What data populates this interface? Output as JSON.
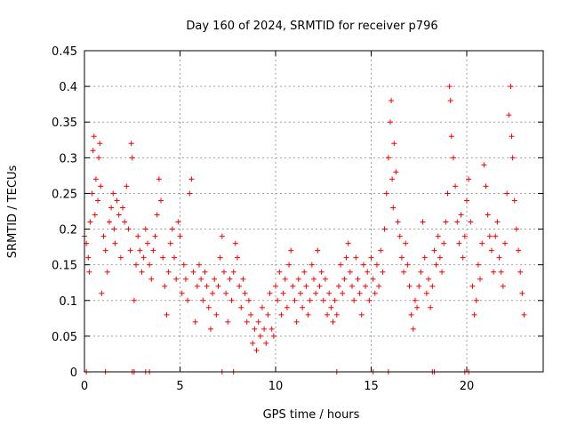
{
  "chart_data": {
    "type": "scatter",
    "title": "Day 160 of 2024, SRMTID for receiver p796",
    "xlabel": "GPS time / hours",
    "ylabel": "SRMTID / TECUs",
    "xlim": [
      0,
      24
    ],
    "ylim": [
      0,
      0.45
    ],
    "xticks": [
      0,
      5,
      10,
      15,
      20
    ],
    "xtick_labels": [
      "0",
      "5",
      "10",
      "15",
      "20"
    ],
    "yticks": [
      0,
      0.05,
      0.1,
      0.15,
      0.2,
      0.25,
      0.3,
      0.35,
      0.4,
      0.45
    ],
    "ytick_labels": [
      "0",
      "0.05",
      "0.1",
      "0.15",
      "0.2",
      "0.25",
      "0.3",
      "0.35",
      "0.4",
      "0.45"
    ],
    "grid": true,
    "marker": "+",
    "color": "#ff0000",
    "series": [
      {
        "name": "SRMTID",
        "points": [
          [
            0.0,
            0.19
          ],
          [
            0.1,
            0.18
          ],
          [
            0.2,
            0.16
          ],
          [
            0.25,
            0.14
          ],
          [
            0.3,
            0.21
          ],
          [
            0.4,
            0.25
          ],
          [
            0.45,
            0.31
          ],
          [
            0.5,
            0.33
          ],
          [
            0.55,
            0.22
          ],
          [
            0.6,
            0.27
          ],
          [
            0.7,
            0.24
          ],
          [
            0.75,
            0.3
          ],
          [
            0.8,
            0.32
          ],
          [
            0.85,
            0.26
          ],
          [
            0.9,
            0.11
          ],
          [
            1.0,
            0.19
          ],
          [
            1.1,
            0.17
          ],
          [
            1.2,
            0.14
          ],
          [
            1.3,
            0.21
          ],
          [
            1.4,
            0.23
          ],
          [
            1.5,
            0.25
          ],
          [
            1.55,
            0.2
          ],
          [
            1.6,
            0.18
          ],
          [
            1.7,
            0.24
          ],
          [
            1.8,
            0.22
          ],
          [
            1.9,
            0.16
          ],
          [
            2.0,
            0.23
          ],
          [
            2.1,
            0.21
          ],
          [
            2.2,
            0.26
          ],
          [
            2.3,
            0.2
          ],
          [
            2.4,
            0.17
          ],
          [
            2.45,
            0.32
          ],
          [
            2.5,
            0.3
          ],
          [
            2.6,
            0.1
          ],
          [
            2.7,
            0.15
          ],
          [
            2.8,
            0.19
          ],
          [
            2.9,
            0.17
          ],
          [
            3.0,
            0.14
          ],
          [
            3.1,
            0.16
          ],
          [
            3.2,
            0.2
          ],
          [
            3.3,
            0.18
          ],
          [
            3.4,
            0.15
          ],
          [
            3.5,
            0.13
          ],
          [
            3.6,
            0.17
          ],
          [
            3.7,
            0.19
          ],
          [
            3.8,
            0.22
          ],
          [
            3.9,
            0.27
          ],
          [
            4.0,
            0.24
          ],
          [
            4.1,
            0.16
          ],
          [
            4.2,
            0.12
          ],
          [
            4.3,
            0.08
          ],
          [
            4.4,
            0.14
          ],
          [
            4.5,
            0.18
          ],
          [
            4.6,
            0.2
          ],
          [
            4.7,
            0.16
          ],
          [
            4.8,
            0.13
          ],
          [
            4.9,
            0.21
          ],
          [
            5.0,
            0.19
          ],
          [
            5.1,
            0.11
          ],
          [
            5.2,
            0.15
          ],
          [
            5.3,
            0.13
          ],
          [
            5.4,
            0.1
          ],
          [
            5.5,
            0.25
          ],
          [
            5.6,
            0.27
          ],
          [
            5.7,
            0.14
          ],
          [
            5.8,
            0.07
          ],
          [
            5.9,
            0.12
          ],
          [
            6.0,
            0.15
          ],
          [
            6.1,
            0.13
          ],
          [
            6.2,
            0.1
          ],
          [
            6.3,
            0.14
          ],
          [
            6.4,
            0.12
          ],
          [
            6.5,
            0.09
          ],
          [
            6.6,
            0.06
          ],
          [
            6.7,
            0.11
          ],
          [
            6.8,
            0.13
          ],
          [
            6.9,
            0.08
          ],
          [
            7.0,
            0.12
          ],
          [
            7.1,
            0.16
          ],
          [
            7.2,
            0.19
          ],
          [
            7.3,
            0.14
          ],
          [
            7.4,
            0.11
          ],
          [
            7.5,
            0.07
          ],
          [
            7.6,
            0.13
          ],
          [
            7.7,
            0.1
          ],
          [
            7.8,
            0.14
          ],
          [
            7.9,
            0.18
          ],
          [
            8.0,
            0.16
          ],
          [
            8.1,
            0.12
          ],
          [
            8.2,
            0.09
          ],
          [
            8.3,
            0.13
          ],
          [
            8.4,
            0.11
          ],
          [
            8.5,
            0.07
          ],
          [
            8.6,
            0.1
          ],
          [
            8.7,
            0.08
          ],
          [
            8.8,
            0.04
          ],
          [
            8.9,
            0.06
          ],
          [
            9.0,
            0.03
          ],
          [
            9.1,
            0.07
          ],
          [
            9.2,
            0.05
          ],
          [
            9.3,
            0.09
          ],
          [
            9.4,
            0.06
          ],
          [
            9.5,
            0.04
          ],
          [
            9.6,
            0.08
          ],
          [
            9.7,
            0.11
          ],
          [
            9.8,
            0.06
          ],
          [
            9.9,
            0.05
          ],
          [
            10.0,
            0.12
          ],
          [
            10.1,
            0.1
          ],
          [
            10.2,
            0.14
          ],
          [
            10.3,
            0.08
          ],
          [
            10.4,
            0.11
          ],
          [
            10.5,
            0.13
          ],
          [
            10.6,
            0.09
          ],
          [
            10.7,
            0.15
          ],
          [
            10.8,
            0.17
          ],
          [
            10.9,
            0.12
          ],
          [
            11.0,
            0.1
          ],
          [
            11.1,
            0.07
          ],
          [
            11.2,
            0.13
          ],
          [
            11.3,
            0.11
          ],
          [
            11.4,
            0.09
          ],
          [
            11.5,
            0.14
          ],
          [
            11.6,
            0.12
          ],
          [
            11.7,
            0.08
          ],
          [
            11.8,
            0.1
          ],
          [
            11.9,
            0.15
          ],
          [
            12.0,
            0.13
          ],
          [
            12.1,
            0.11
          ],
          [
            12.2,
            0.17
          ],
          [
            12.3,
            0.12
          ],
          [
            12.4,
            0.14
          ],
          [
            12.5,
            0.1
          ],
          [
            12.6,
            0.13
          ],
          [
            12.7,
            0.08
          ],
          [
            12.8,
            0.11
          ],
          [
            12.9,
            0.09
          ],
          [
            13.0,
            0.07
          ],
          [
            13.1,
            0.1
          ],
          [
            13.2,
            0.08
          ],
          [
            13.3,
            0.12
          ],
          [
            13.4,
            0.15
          ],
          [
            13.5,
            0.11
          ],
          [
            13.6,
            0.13
          ],
          [
            13.7,
            0.16
          ],
          [
            13.8,
            0.18
          ],
          [
            13.9,
            0.14
          ],
          [
            14.0,
            0.12
          ],
          [
            14.1,
            0.1
          ],
          [
            14.2,
            0.16
          ],
          [
            14.3,
            0.13
          ],
          [
            14.4,
            0.11
          ],
          [
            14.5,
            0.08
          ],
          [
            14.6,
            0.15
          ],
          [
            14.7,
            0.12
          ],
          [
            14.8,
            0.14
          ],
          [
            14.9,
            0.1
          ],
          [
            15.0,
            0.16
          ],
          [
            15.1,
            0.13
          ],
          [
            15.2,
            0.11
          ],
          [
            15.3,
            0.15
          ],
          [
            15.4,
            0.12
          ],
          [
            15.5,
            0.17
          ],
          [
            15.6,
            0.14
          ],
          [
            15.7,
            0.2
          ],
          [
            15.8,
            0.25
          ],
          [
            15.9,
            0.3
          ],
          [
            16.0,
            0.35
          ],
          [
            16.05,
            0.38
          ],
          [
            16.1,
            0.27
          ],
          [
            16.15,
            0.23
          ],
          [
            16.2,
            0.32
          ],
          [
            16.3,
            0.28
          ],
          [
            16.4,
            0.21
          ],
          [
            16.5,
            0.19
          ],
          [
            16.6,
            0.16
          ],
          [
            16.7,
            0.14
          ],
          [
            16.8,
            0.18
          ],
          [
            16.9,
            0.15
          ],
          [
            17.0,
            0.12
          ],
          [
            17.1,
            0.08
          ],
          [
            17.2,
            0.06
          ],
          [
            17.3,
            0.1
          ],
          [
            17.4,
            0.09
          ],
          [
            17.5,
            0.12
          ],
          [
            17.6,
            0.14
          ],
          [
            17.7,
            0.21
          ],
          [
            17.8,
            0.16
          ],
          [
            17.9,
            0.11
          ],
          [
            18.0,
            0.13
          ],
          [
            18.1,
            0.09
          ],
          [
            18.2,
            0.12
          ],
          [
            18.3,
            0.17
          ],
          [
            18.4,
            0.15
          ],
          [
            18.5,
            0.19
          ],
          [
            18.6,
            0.16
          ],
          [
            18.7,
            0.14
          ],
          [
            18.8,
            0.18
          ],
          [
            18.9,
            0.21
          ],
          [
            19.0,
            0.25
          ],
          [
            19.1,
            0.4
          ],
          [
            19.15,
            0.38
          ],
          [
            19.2,
            0.33
          ],
          [
            19.3,
            0.3
          ],
          [
            19.4,
            0.26
          ],
          [
            19.5,
            0.21
          ],
          [
            19.6,
            0.18
          ],
          [
            19.7,
            0.22
          ],
          [
            19.8,
            0.16
          ],
          [
            19.9,
            0.19
          ],
          [
            20.0,
            0.24
          ],
          [
            20.1,
            0.27
          ],
          [
            20.2,
            0.21
          ],
          [
            20.3,
            0.12
          ],
          [
            20.4,
            0.08
          ],
          [
            20.5,
            0.1
          ],
          [
            20.6,
            0.15
          ],
          [
            20.7,
            0.13
          ],
          [
            20.8,
            0.18
          ],
          [
            20.9,
            0.29
          ],
          [
            21.0,
            0.26
          ],
          [
            21.1,
            0.22
          ],
          [
            21.2,
            0.19
          ],
          [
            21.3,
            0.17
          ],
          [
            21.4,
            0.14
          ],
          [
            21.5,
            0.19
          ],
          [
            21.6,
            0.21
          ],
          [
            21.7,
            0.16
          ],
          [
            21.8,
            0.14
          ],
          [
            21.9,
            0.12
          ],
          [
            22.0,
            0.18
          ],
          [
            22.1,
            0.25
          ],
          [
            22.2,
            0.36
          ],
          [
            22.3,
            0.4
          ],
          [
            22.35,
            0.33
          ],
          [
            22.4,
            0.3
          ],
          [
            22.5,
            0.24
          ],
          [
            22.6,
            0.2
          ],
          [
            22.7,
            0.17
          ],
          [
            22.8,
            0.14
          ],
          [
            22.9,
            0.11
          ],
          [
            23.0,
            0.08
          ]
        ]
      }
    ],
    "zero_markers_x": [
      0.1,
      1.1,
      2.5,
      2.6,
      3.2,
      3.4,
      7.2,
      7.8,
      13.2,
      15.1,
      15.9,
      18.2,
      18.3,
      19.9,
      20.1
    ]
  }
}
